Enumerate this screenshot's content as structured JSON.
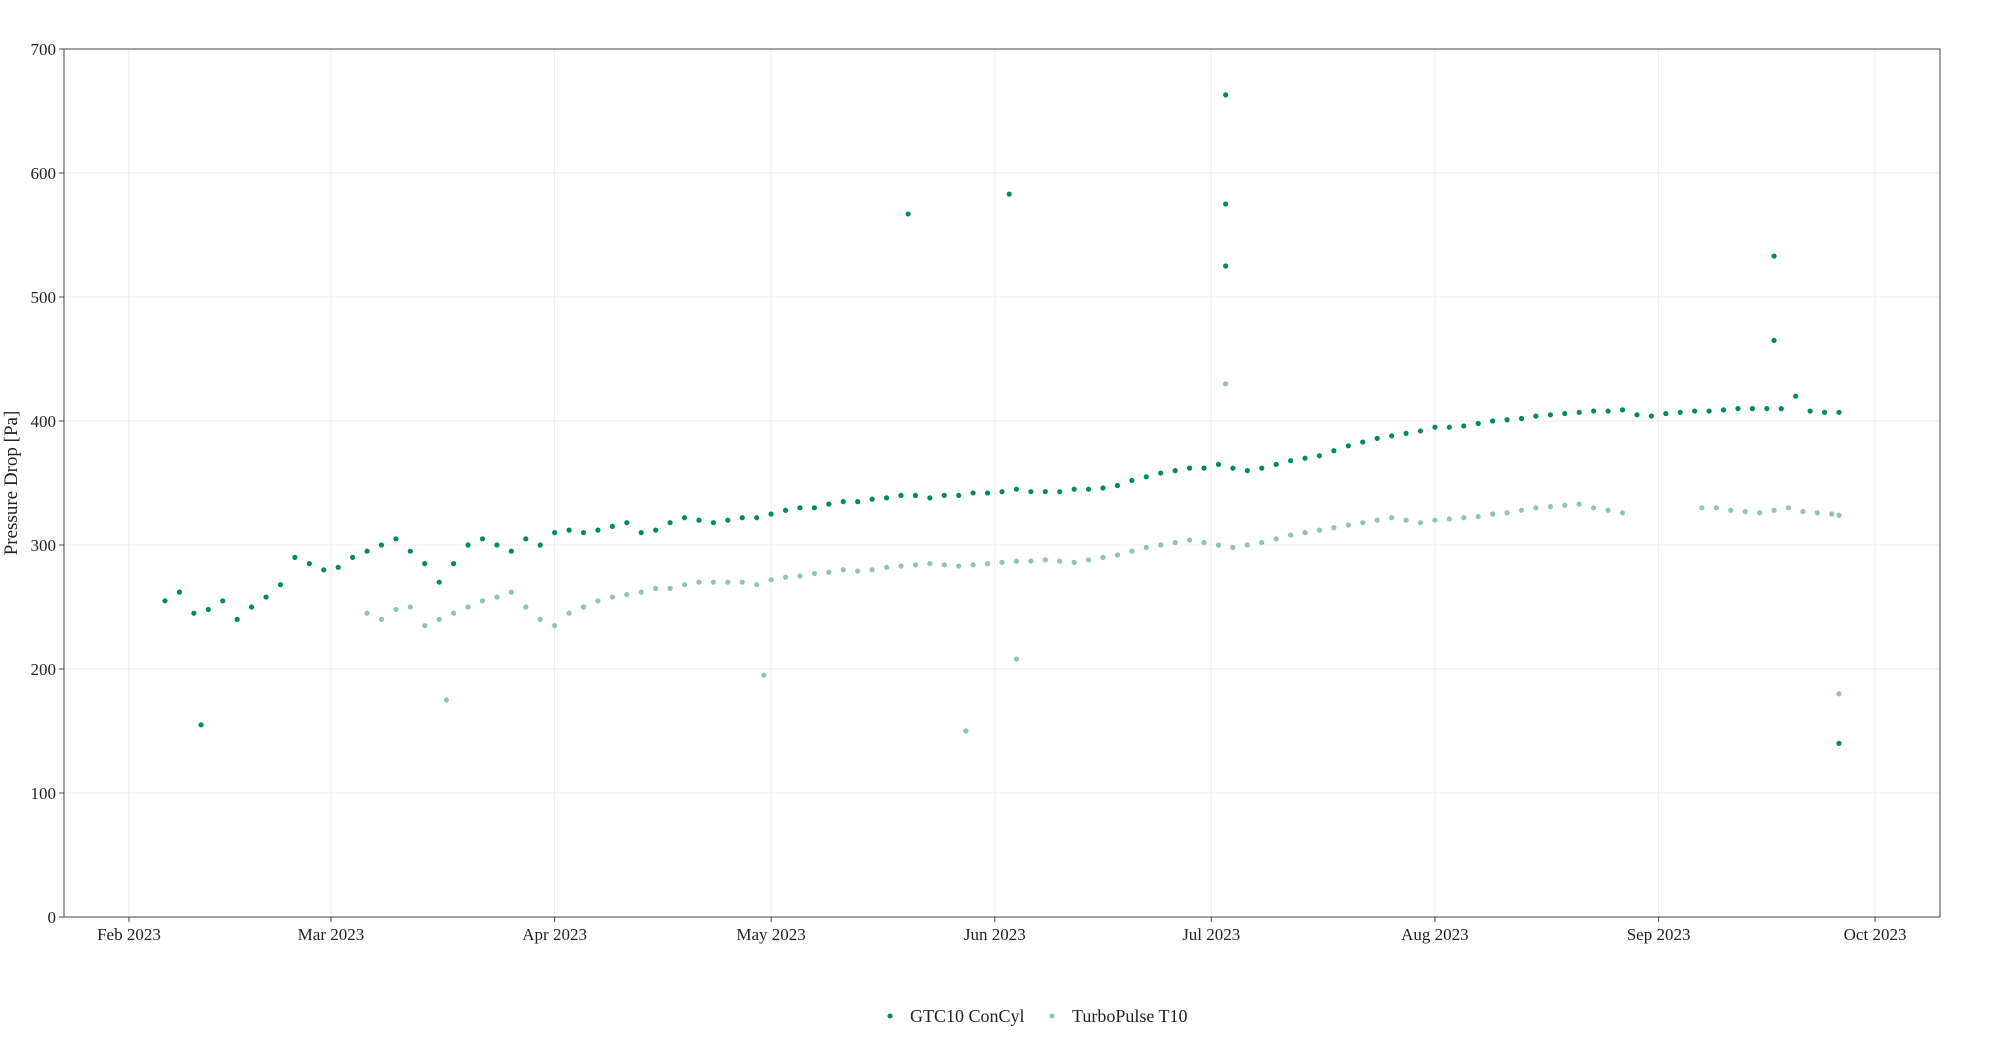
{
  "chart_data": {
    "type": "scatter",
    "title": "",
    "xlabel": "",
    "ylabel": "Pressure Drop [Pa]",
    "xlim": [
      "2023-01-23",
      "2023-10-10"
    ],
    "ylim": [
      0,
      700
    ],
    "yticks": [
      0,
      100,
      200,
      300,
      400,
      500,
      600,
      700
    ],
    "xticks": [
      {
        "date": "2023-02-01",
        "label": "Feb 2023"
      },
      {
        "date": "2023-03-01",
        "label": "Mar 2023"
      },
      {
        "date": "2023-04-01",
        "label": "Apr 2023"
      },
      {
        "date": "2023-05-01",
        "label": "May 2023"
      },
      {
        "date": "2023-06-01",
        "label": "Jun 2023"
      },
      {
        "date": "2023-07-01",
        "label": "Jul 2023"
      },
      {
        "date": "2023-08-01",
        "label": "Aug 2023"
      },
      {
        "date": "2023-09-01",
        "label": "Sep 2023"
      },
      {
        "date": "2023-10-01",
        "label": "Oct 2023"
      }
    ],
    "grid": true,
    "legend_position": "bottom",
    "series": [
      {
        "name": "GTC10 ConCyl",
        "color": "#008a5e",
        "x": [
          "2023-02-06",
          "2023-02-08",
          "2023-02-10",
          "2023-02-12",
          "2023-02-14",
          "2023-02-16",
          "2023-02-18",
          "2023-02-20",
          "2023-02-22",
          "2023-02-24",
          "2023-02-26",
          "2023-02-28",
          "2023-03-02",
          "2023-03-04",
          "2023-03-06",
          "2023-03-08",
          "2023-03-10",
          "2023-03-12",
          "2023-03-14",
          "2023-03-16",
          "2023-03-18",
          "2023-03-20",
          "2023-03-22",
          "2023-03-24",
          "2023-03-26",
          "2023-03-28",
          "2023-03-30",
          "2023-04-01",
          "2023-04-03",
          "2023-04-05",
          "2023-04-07",
          "2023-04-09",
          "2023-04-11",
          "2023-04-13",
          "2023-04-15",
          "2023-04-17",
          "2023-04-19",
          "2023-04-21",
          "2023-04-23",
          "2023-04-25",
          "2023-04-27",
          "2023-04-29",
          "2023-05-01",
          "2023-05-03",
          "2023-05-05",
          "2023-05-07",
          "2023-05-09",
          "2023-05-11",
          "2023-05-13",
          "2023-05-15",
          "2023-05-17",
          "2023-05-19",
          "2023-05-21",
          "2023-05-23",
          "2023-05-25",
          "2023-05-27",
          "2023-05-29",
          "2023-05-31",
          "2023-06-02",
          "2023-06-04",
          "2023-06-06",
          "2023-06-08",
          "2023-06-10",
          "2023-06-12",
          "2023-06-14",
          "2023-06-16",
          "2023-06-18",
          "2023-06-20",
          "2023-06-22",
          "2023-06-24",
          "2023-06-26",
          "2023-06-28",
          "2023-06-30",
          "2023-07-02",
          "2023-07-04",
          "2023-07-06",
          "2023-07-08",
          "2023-07-10",
          "2023-07-12",
          "2023-07-14",
          "2023-07-16",
          "2023-07-18",
          "2023-07-20",
          "2023-07-22",
          "2023-07-24",
          "2023-07-26",
          "2023-07-28",
          "2023-07-30",
          "2023-08-01",
          "2023-08-03",
          "2023-08-05",
          "2023-08-07",
          "2023-08-09",
          "2023-08-11",
          "2023-08-13",
          "2023-08-15",
          "2023-08-17",
          "2023-08-19",
          "2023-08-21",
          "2023-08-23",
          "2023-08-25",
          "2023-08-27",
          "2023-08-29",
          "2023-08-31",
          "2023-09-02",
          "2023-09-04",
          "2023-09-06",
          "2023-09-08",
          "2023-09-10",
          "2023-09-12",
          "2023-09-14",
          "2023-09-16",
          "2023-09-18",
          "2023-09-20",
          "2023-09-22",
          "2023-09-24",
          "2023-09-26",
          "2023-02-11",
          "2023-05-20",
          "2023-06-03",
          "2023-07-03",
          "2023-07-03",
          "2023-07-03",
          "2023-09-17",
          "2023-09-17",
          "2023-09-26"
        ],
        "y": [
          255,
          262,
          245,
          248,
          255,
          240,
          250,
          258,
          268,
          290,
          285,
          280,
          282,
          290,
          295,
          300,
          305,
          295,
          285,
          270,
          285,
          300,
          305,
          300,
          295,
          305,
          300,
          310,
          312,
          310,
          312,
          315,
          318,
          310,
          312,
          318,
          322,
          320,
          318,
          320,
          322,
          322,
          325,
          328,
          330,
          330,
          333,
          335,
          335,
          337,
          338,
          340,
          340,
          338,
          340,
          340,
          342,
          342,
          343,
          345,
          343,
          343,
          343,
          345,
          345,
          346,
          348,
          352,
          355,
          358,
          360,
          362,
          362,
          365,
          362,
          360,
          362,
          365,
          368,
          370,
          372,
          376,
          380,
          383,
          386,
          388,
          390,
          392,
          395,
          395,
          396,
          398,
          400,
          401,
          402,
          404,
          405,
          406,
          407,
          408,
          408,
          409,
          405,
          404,
          406,
          407,
          408,
          408,
          409,
          410,
          410,
          410,
          410,
          420,
          408,
          407,
          407,
          155,
          567,
          583,
          663,
          575,
          525,
          533,
          465,
          140
        ]
      },
      {
        "name": "TurboPulse T10",
        "color": "#8fc5ad",
        "x": [
          "2023-03-06",
          "2023-03-08",
          "2023-03-10",
          "2023-03-12",
          "2023-03-14",
          "2023-03-16",
          "2023-03-18",
          "2023-03-20",
          "2023-03-22",
          "2023-03-24",
          "2023-03-26",
          "2023-03-28",
          "2023-03-30",
          "2023-04-01",
          "2023-04-03",
          "2023-04-05",
          "2023-04-07",
          "2023-04-09",
          "2023-04-11",
          "2023-04-13",
          "2023-04-15",
          "2023-04-17",
          "2023-04-19",
          "2023-04-21",
          "2023-04-23",
          "2023-04-25",
          "2023-04-27",
          "2023-04-29",
          "2023-05-01",
          "2023-05-03",
          "2023-05-05",
          "2023-05-07",
          "2023-05-09",
          "2023-05-11",
          "2023-05-13",
          "2023-05-15",
          "2023-05-17",
          "2023-05-19",
          "2023-05-21",
          "2023-05-23",
          "2023-05-25",
          "2023-05-27",
          "2023-05-29",
          "2023-05-31",
          "2023-06-02",
          "2023-06-04",
          "2023-06-06",
          "2023-06-08",
          "2023-06-10",
          "2023-06-12",
          "2023-06-14",
          "2023-06-16",
          "2023-06-18",
          "2023-06-20",
          "2023-06-22",
          "2023-06-24",
          "2023-06-26",
          "2023-06-28",
          "2023-06-30",
          "2023-07-02",
          "2023-07-04",
          "2023-07-06",
          "2023-07-08",
          "2023-07-10",
          "2023-07-12",
          "2023-07-14",
          "2023-07-16",
          "2023-07-18",
          "2023-07-20",
          "2023-07-22",
          "2023-07-24",
          "2023-07-26",
          "2023-07-28",
          "2023-07-30",
          "2023-08-01",
          "2023-08-03",
          "2023-08-05",
          "2023-08-07",
          "2023-08-09",
          "2023-08-11",
          "2023-08-13",
          "2023-08-15",
          "2023-08-17",
          "2023-08-19",
          "2023-08-21",
          "2023-08-23",
          "2023-08-25",
          "2023-08-27",
          "2023-09-07",
          "2023-09-09",
          "2023-09-11",
          "2023-09-13",
          "2023-09-15",
          "2023-09-17",
          "2023-09-19",
          "2023-09-21",
          "2023-09-23",
          "2023-09-25",
          "2023-09-26",
          "2023-03-17",
          "2023-04-30",
          "2023-05-28",
          "2023-06-04",
          "2023-07-03",
          "2023-09-26"
        ],
        "y": [
          245,
          240,
          248,
          250,
          235,
          240,
          245,
          250,
          255,
          258,
          262,
          250,
          240,
          235,
          245,
          250,
          255,
          258,
          260,
          262,
          265,
          265,
          268,
          270,
          270,
          270,
          270,
          268,
          272,
          274,
          275,
          277,
          278,
          280,
          279,
          280,
          282,
          283,
          284,
          285,
          284,
          283,
          284,
          285,
          286,
          287,
          287,
          288,
          287,
          286,
          288,
          290,
          292,
          295,
          298,
          300,
          302,
          304,
          302,
          300,
          298,
          300,
          302,
          305,
          308,
          310,
          312,
          314,
          316,
          318,
          320,
          322,
          320,
          318,
          320,
          321,
          322,
          323,
          325,
          326,
          328,
          330,
          331,
          332,
          333,
          330,
          328,
          326,
          330,
          330,
          328,
          327,
          326,
          328,
          330,
          327,
          326,
          325,
          324,
          175,
          195,
          150,
          208,
          430,
          180
        ]
      }
    ]
  }
}
